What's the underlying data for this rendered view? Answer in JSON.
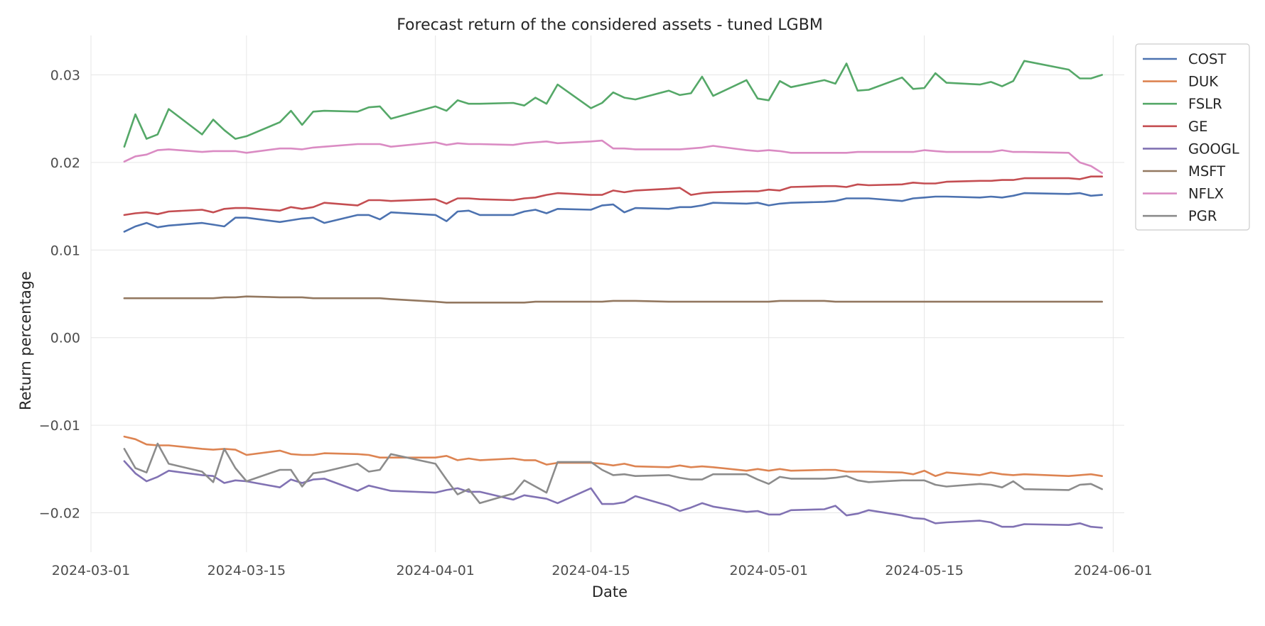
{
  "chart_data": {
    "type": "line",
    "title": "Forecast return of the considered assets - tuned LGBM",
    "xlabel": "Date",
    "ylabel": "Return percentage",
    "x_axis": "date",
    "xlim": [
      "2024-03-01",
      "2024-06-02"
    ],
    "ylim": [
      -0.0245,
      0.0345
    ],
    "xticks": [
      "2024-03-01",
      "2024-03-15",
      "2024-04-01",
      "2024-04-15",
      "2024-05-01",
      "2024-05-15",
      "2024-06-01"
    ],
    "yticks": [
      -0.02,
      -0.01,
      0.0,
      0.01,
      0.02,
      0.03
    ],
    "ytick_labels": [
      "−0.02",
      "−0.01",
      "0.00",
      "0.01",
      "0.02",
      "0.03"
    ],
    "grid": true,
    "legend_position": "upper-right-outside",
    "x": [
      "2024-03-04",
      "2024-03-05",
      "2024-03-06",
      "2024-03-07",
      "2024-03-08",
      "2024-03-11",
      "2024-03-12",
      "2024-03-13",
      "2024-03-14",
      "2024-03-15",
      "2024-03-18",
      "2024-03-19",
      "2024-03-20",
      "2024-03-21",
      "2024-03-22",
      "2024-03-25",
      "2024-03-26",
      "2024-03-27",
      "2024-03-28",
      "2024-04-01",
      "2024-04-02",
      "2024-04-03",
      "2024-04-04",
      "2024-04-05",
      "2024-04-08",
      "2024-04-09",
      "2024-04-10",
      "2024-04-11",
      "2024-04-12",
      "2024-04-15",
      "2024-04-16",
      "2024-04-17",
      "2024-04-18",
      "2024-04-19",
      "2024-04-22",
      "2024-04-23",
      "2024-04-24",
      "2024-04-25",
      "2024-04-26",
      "2024-04-29",
      "2024-04-30",
      "2024-05-01",
      "2024-05-02",
      "2024-05-03",
      "2024-05-06",
      "2024-05-07",
      "2024-05-08",
      "2024-05-09",
      "2024-05-10",
      "2024-05-13",
      "2024-05-14",
      "2024-05-15",
      "2024-05-16",
      "2024-05-17",
      "2024-05-20",
      "2024-05-21",
      "2024-05-22",
      "2024-05-23",
      "2024-05-24",
      "2024-05-28",
      "2024-05-29",
      "2024-05-30",
      "2024-05-31"
    ],
    "series": [
      {
        "name": "COST",
        "color": "#4c72b0",
        "values": [
          0.0121,
          0.0127,
          0.0131,
          0.0126,
          0.0128,
          0.0131,
          0.0129,
          0.0127,
          0.0137,
          0.0137,
          0.0132,
          0.0134,
          0.0136,
          0.0137,
          0.0131,
          0.014,
          0.014,
          0.0135,
          0.0143,
          0.014,
          0.0133,
          0.0144,
          0.0145,
          0.014,
          0.014,
          0.0144,
          0.0146,
          0.0142,
          0.0147,
          0.0146,
          0.0151,
          0.0152,
          0.0143,
          0.0148,
          0.0147,
          0.0149,
          0.0149,
          0.0151,
          0.0154,
          0.0153,
          0.0154,
          0.0151,
          0.0153,
          0.0154,
          0.0155,
          0.0156,
          0.0159,
          0.0159,
          0.0159,
          0.0156,
          0.0159,
          0.016,
          0.0161,
          0.0161,
          0.016,
          0.0161,
          0.016,
          0.0162,
          0.0165,
          0.0164,
          0.0165,
          0.0162,
          0.0163
        ]
      },
      {
        "name": "DUK",
        "color": "#dd8452",
        "values": [
          -0.0113,
          -0.0116,
          -0.0122,
          -0.0123,
          -0.0123,
          -0.0127,
          -0.0128,
          -0.0127,
          -0.0128,
          -0.0134,
          -0.0129,
          -0.0133,
          -0.0134,
          -0.0134,
          -0.0132,
          -0.0133,
          -0.0134,
          -0.0137,
          -0.0137,
          -0.0137,
          -0.0135,
          -0.014,
          -0.0138,
          -0.014,
          -0.0138,
          -0.014,
          -0.014,
          -0.0145,
          -0.0143,
          -0.0143,
          -0.0144,
          -0.0146,
          -0.0144,
          -0.0147,
          -0.0148,
          -0.0146,
          -0.0148,
          -0.0147,
          -0.0148,
          -0.0152,
          -0.015,
          -0.0152,
          -0.015,
          -0.0152,
          -0.0151,
          -0.0151,
          -0.0153,
          -0.0153,
          -0.0153,
          -0.0154,
          -0.0156,
          -0.0152,
          -0.0158,
          -0.0154,
          -0.0157,
          -0.0154,
          -0.0156,
          -0.0157,
          -0.0156,
          -0.0158,
          -0.0157,
          -0.0156,
          -0.0158
        ]
      },
      {
        "name": "FSLR",
        "color": "#55a868",
        "values": [
          0.0218,
          0.0255,
          0.0227,
          0.0232,
          0.0261,
          0.0232,
          0.0249,
          0.0237,
          0.0227,
          0.023,
          0.0246,
          0.0259,
          0.0243,
          0.0258,
          0.0259,
          0.0258,
          0.0263,
          0.0264,
          0.025,
          0.0264,
          0.0259,
          0.0271,
          0.0267,
          0.0267,
          0.0268,
          0.0265,
          0.0274,
          0.0267,
          0.0289,
          0.0262,
          0.0268,
          0.028,
          0.0274,
          0.0272,
          0.0282,
          0.0277,
          0.0279,
          0.0298,
          0.0276,
          0.0294,
          0.0273,
          0.0271,
          0.0293,
          0.0286,
          0.0294,
          0.029,
          0.0313,
          0.0282,
          0.0283,
          0.0297,
          0.0284,
          0.0285,
          0.0302,
          0.0291,
          0.0289,
          0.0292,
          0.0287,
          0.0293,
          0.0316,
          0.0306,
          0.0296,
          0.0296,
          0.03
        ]
      },
      {
        "name": "GE",
        "color": "#c44e52",
        "values": [
          0.014,
          0.0142,
          0.0143,
          0.0141,
          0.0144,
          0.0146,
          0.0143,
          0.0147,
          0.0148,
          0.0148,
          0.0145,
          0.0149,
          0.0147,
          0.0149,
          0.0154,
          0.0151,
          0.0157,
          0.0157,
          0.0156,
          0.0158,
          0.0153,
          0.0159,
          0.0159,
          0.0158,
          0.0157,
          0.0159,
          0.016,
          0.0163,
          0.0165,
          0.0163,
          0.0163,
          0.0168,
          0.0166,
          0.0168,
          0.017,
          0.0171,
          0.0163,
          0.0165,
          0.0166,
          0.0167,
          0.0167,
          0.0169,
          0.0168,
          0.0172,
          0.0173,
          0.0173,
          0.0172,
          0.0175,
          0.0174,
          0.0175,
          0.0177,
          0.0176,
          0.0176,
          0.0178,
          0.0179,
          0.0179,
          0.018,
          0.018,
          0.0182,
          0.0182,
          0.0181,
          0.0184,
          0.0184
        ]
      },
      {
        "name": "GOOGL",
        "color": "#8172b3",
        "values": [
          -0.0141,
          -0.0155,
          -0.0164,
          -0.0159,
          -0.0152,
          -0.0157,
          -0.0158,
          -0.0166,
          -0.0163,
          -0.0164,
          -0.0171,
          -0.0162,
          -0.0166,
          -0.0162,
          -0.0161,
          -0.0175,
          -0.0169,
          -0.0172,
          -0.0175,
          -0.0177,
          -0.0174,
          -0.0172,
          -0.0176,
          -0.0176,
          -0.0185,
          -0.018,
          -0.0182,
          -0.0184,
          -0.0189,
          -0.0172,
          -0.019,
          -0.019,
          -0.0188,
          -0.0181,
          -0.0192,
          -0.0198,
          -0.0194,
          -0.0189,
          -0.0193,
          -0.0199,
          -0.0198,
          -0.0202,
          -0.0202,
          -0.0197,
          -0.0196,
          -0.0192,
          -0.0203,
          -0.0201,
          -0.0197,
          -0.0203,
          -0.0206,
          -0.0207,
          -0.0212,
          -0.0211,
          -0.0209,
          -0.0211,
          -0.0216,
          -0.0216,
          -0.0213,
          -0.0214,
          -0.0212,
          -0.0216,
          -0.0217
        ]
      },
      {
        "name": "MSFT",
        "color": "#937860",
        "values": [
          0.0045,
          0.0045,
          0.0045,
          0.0045,
          0.0045,
          0.0045,
          0.0045,
          0.0046,
          0.0046,
          0.0047,
          0.0046,
          0.0046,
          0.0046,
          0.0045,
          0.0045,
          0.0045,
          0.0045,
          0.0045,
          0.0044,
          0.0041,
          0.004,
          0.004,
          0.004,
          0.004,
          0.004,
          0.004,
          0.0041,
          0.0041,
          0.0041,
          0.0041,
          0.0041,
          0.0042,
          0.0042,
          0.0042,
          0.0041,
          0.0041,
          0.0041,
          0.0041,
          0.0041,
          0.0041,
          0.0041,
          0.0041,
          0.0042,
          0.0042,
          0.0042,
          0.0041,
          0.0041,
          0.0041,
          0.0041,
          0.0041,
          0.0041,
          0.0041,
          0.0041,
          0.0041,
          0.0041,
          0.0041,
          0.0041,
          0.0041,
          0.0041,
          0.0041,
          0.0041,
          0.0041,
          0.0041
        ]
      },
      {
        "name": "NFLX",
        "color": "#da8bc3",
        "values": [
          0.0201,
          0.0207,
          0.0209,
          0.0214,
          0.0215,
          0.0212,
          0.0213,
          0.0213,
          0.0213,
          0.0211,
          0.0216,
          0.0216,
          0.0215,
          0.0217,
          0.0218,
          0.0221,
          0.0221,
          0.0221,
          0.0218,
          0.0223,
          0.022,
          0.0222,
          0.0221,
          0.0221,
          0.022,
          0.0222,
          0.0223,
          0.0224,
          0.0222,
          0.0224,
          0.0225,
          0.0216,
          0.0216,
          0.0215,
          0.0215,
          0.0215,
          0.0216,
          0.0217,
          0.0219,
          0.0214,
          0.0213,
          0.0214,
          0.0213,
          0.0211,
          0.0211,
          0.0211,
          0.0211,
          0.0212,
          0.0212,
          0.0212,
          0.0212,
          0.0214,
          0.0213,
          0.0212,
          0.0212,
          0.0212,
          0.0214,
          0.0212,
          0.0212,
          0.0211,
          0.02,
          0.0196,
          0.0188
        ]
      },
      {
        "name": "PGR",
        "color": "#8c8c8c",
        "values": [
          -0.0127,
          -0.0149,
          -0.0154,
          -0.0121,
          -0.0144,
          -0.0153,
          -0.0165,
          -0.0127,
          -0.0149,
          -0.0164,
          -0.0151,
          -0.0151,
          -0.017,
          -0.0155,
          -0.0153,
          -0.0144,
          -0.0153,
          -0.0151,
          -0.0133,
          -0.0144,
          -0.0162,
          -0.0179,
          -0.0173,
          -0.0189,
          -0.0178,
          -0.0163,
          -0.017,
          -0.0177,
          -0.0142,
          -0.0142,
          -0.0151,
          -0.0157,
          -0.0156,
          -0.0158,
          -0.0157,
          -0.016,
          -0.0162,
          -0.0162,
          -0.0156,
          -0.0156,
          -0.0162,
          -0.0167,
          -0.0159,
          -0.0161,
          -0.0161,
          -0.016,
          -0.0158,
          -0.0163,
          -0.0165,
          -0.0163,
          -0.0163,
          -0.0163,
          -0.0168,
          -0.017,
          -0.0167,
          -0.0168,
          -0.0171,
          -0.0164,
          -0.0173,
          -0.0174,
          -0.0168,
          -0.0167,
          -0.0173
        ]
      }
    ]
  }
}
